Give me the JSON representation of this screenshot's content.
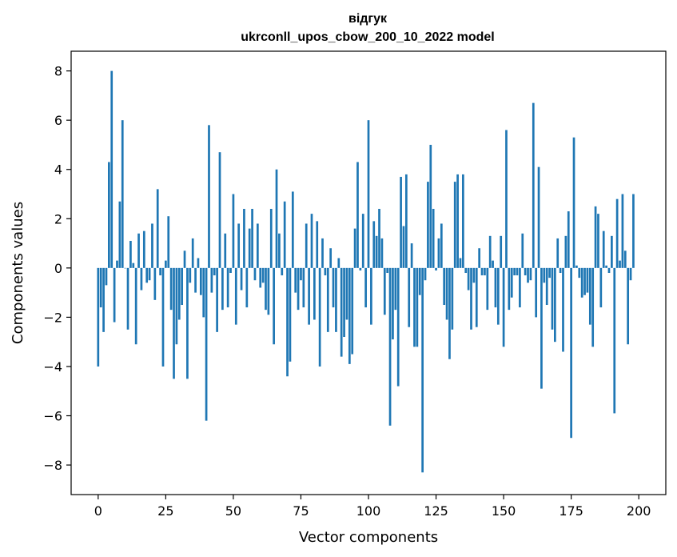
{
  "chart_data": {
    "type": "bar",
    "title_line1": "відгук",
    "title_line2": "ukrconll_upos_cbow_200_10_2022 model",
    "xlabel": "Vector components",
    "ylabel": "Components values",
    "xlim": [
      -10,
      210
    ],
    "ylim": [
      -9.2,
      8.8
    ],
    "xticks": [
      0,
      25,
      50,
      75,
      100,
      125,
      150,
      175,
      200
    ],
    "yticks": [
      -8,
      -6,
      -4,
      -2,
      0,
      2,
      4,
      6,
      8
    ],
    "grid": false,
    "bar_color": "#1f77b4",
    "values": [
      -4.0,
      -1.6,
      -2.6,
      -0.7,
      4.3,
      8.0,
      -2.2,
      0.3,
      2.7,
      6.0,
      0.0,
      -2.5,
      1.1,
      0.2,
      -3.1,
      1.4,
      -0.9,
      1.5,
      -0.6,
      -0.5,
      1.8,
      -1.3,
      3.2,
      -0.3,
      -4.0,
      0.3,
      2.1,
      -1.7,
      -4.5,
      -3.1,
      -2.1,
      -1.5,
      0.7,
      -4.5,
      -0.6,
      1.2,
      -1.0,
      0.4,
      -1.1,
      -2.0,
      -6.2,
      5.8,
      -1.0,
      -0.3,
      -2.6,
      4.7,
      -1.7,
      1.4,
      -1.6,
      -0.2,
      3.0,
      -2.3,
      1.8,
      -0.9,
      2.4,
      -1.6,
      1.6,
      2.4,
      -0.5,
      1.8,
      -0.8,
      -0.6,
      -1.7,
      -1.9,
      2.4,
      -3.1,
      4.0,
      1.4,
      -0.3,
      2.7,
      -4.4,
      -3.8,
      3.1,
      -1.0,
      -1.7,
      -0.5,
      -1.6,
      1.8,
      -2.3,
      2.2,
      -2.1,
      1.9,
      -4.0,
      1.2,
      -0.3,
      -2.6,
      0.8,
      -1.6,
      -2.6,
      0.4,
      -3.6,
      -2.8,
      -2.1,
      -3.9,
      -3.5,
      1.6,
      4.3,
      -0.1,
      2.2,
      -1.6,
      6.0,
      -2.3,
      1.9,
      1.3,
      2.4,
      1.2,
      -1.9,
      -0.2,
      -6.4,
      -2.9,
      -1.7,
      -4.8,
      3.7,
      1.7,
      3.8,
      -2.4,
      1.0,
      -3.2,
      -3.2,
      -1.1,
      -8.3,
      -0.5,
      3.5,
      5.0,
      2.4,
      -0.1,
      1.2,
      1.8,
      -1.5,
      -2.1,
      -3.7,
      -2.5,
      3.5,
      3.8,
      0.4,
      3.8,
      -0.2,
      -0.9,
      -2.5,
      -0.6,
      -2.4,
      0.8,
      -0.3,
      -0.3,
      -1.7,
      1.3,
      0.3,
      -1.6,
      -2.3,
      1.3,
      -3.2,
      5.6,
      -1.7,
      -1.2,
      -0.3,
      -0.3,
      -1.6,
      1.4,
      -0.3,
      -0.6,
      -0.5,
      6.7,
      -2.0,
      4.1,
      -4.9,
      -0.6,
      -1.5,
      -0.4,
      -2.5,
      -3.0,
      1.2,
      -0.2,
      -3.4,
      1.3,
      2.3,
      -6.9,
      5.3,
      0.1,
      -0.4,
      -1.2,
      -1.1,
      -1.0,
      -2.3,
      -3.2,
      2.5,
      2.2,
      -1.6,
      1.5,
      0.1,
      -0.2,
      1.3,
      -5.9,
      2.8,
      0.3,
      3.0,
      0.7,
      -3.1,
      -0.5,
      3.0
    ]
  }
}
